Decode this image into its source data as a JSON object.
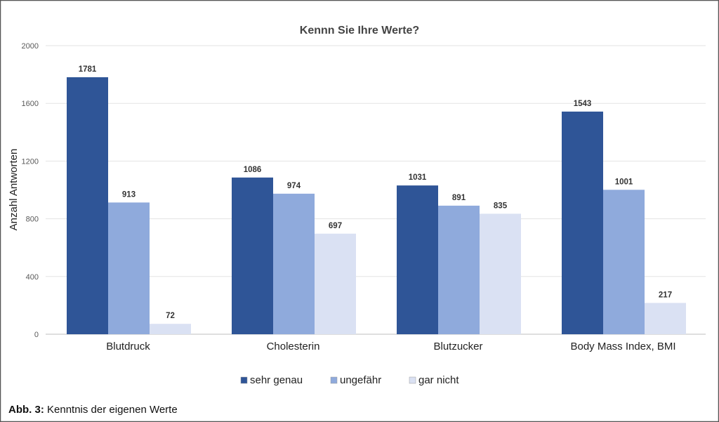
{
  "chart_data": {
    "type": "bar",
    "title": "Kennn Sie Ihre Werte?",
    "xlabel": "",
    "ylabel": "Anzahl Antworten",
    "ylim": [
      0,
      2000
    ],
    "yticks": [
      0,
      400,
      800,
      1200,
      1600,
      2000
    ],
    "grid": true,
    "legend_position": "bottom",
    "categories": [
      "Blutdruck",
      "Cholesterin",
      "Blutzucker",
      "Body Mass Index, BMI"
    ],
    "series": [
      {
        "name": "sehr genau",
        "color": "#2F5597",
        "values": [
          1781,
          1086,
          1031,
          1543
        ]
      },
      {
        "name": "ungefähr",
        "color": "#8FAADC",
        "values": [
          913,
          974,
          891,
          1001
        ]
      },
      {
        "name": "gar nicht",
        "color": "#DAE1F3",
        "values": [
          72,
          697,
          835,
          217
        ]
      }
    ]
  },
  "caption": {
    "label": "Abb. 3:",
    "text": "Kenntnis der eigenen Werte"
  }
}
